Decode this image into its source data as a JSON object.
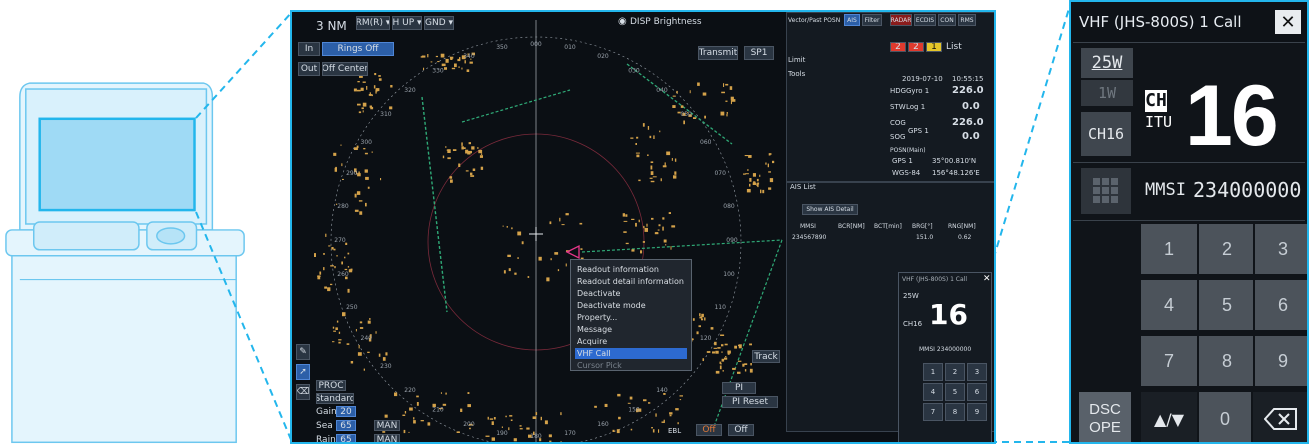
{
  "colors": {
    "accent": "#23b6ec",
    "radar_bg": "#0b0f14",
    "echo": "#d4a24a",
    "menu_select": "#2d6ad0",
    "alert_red": "#e03a2e",
    "alert_yellow": "#e5c629"
  },
  "radar": {
    "range": "3 NM",
    "mode_buttons": [
      "RM(R) ▾",
      "H UP ▾",
      "GND ▾"
    ],
    "rings_in": "In",
    "rings_off": "Rings Off",
    "range_out": "Out",
    "off_center": "Off Center",
    "disp_brightness": "DISP Brightness",
    "transmit": "Transmit",
    "sp": "SP1",
    "bearing_ticks": [
      "350",
      "000",
      "010",
      "020",
      "030",
      "040",
      "050",
      "060",
      "070",
      "080",
      "090",
      "100",
      "110",
      "120",
      "130",
      "140",
      "150",
      "160",
      "170",
      "180",
      "190",
      "200",
      "210",
      "220",
      "230",
      "240",
      "250",
      "260",
      "270",
      "280",
      "290",
      "300",
      "310",
      "320",
      "330",
      "340"
    ],
    "proc": "PROC",
    "standard": "Standard",
    "gain_label": "Gain",
    "gain_value": "20",
    "sea_label": "Sea",
    "sea_value": "65",
    "rain_label": "Rain",
    "rain_value": "65",
    "man": "MAN",
    "track": "Track",
    "pi": "PI",
    "pi_reset": "PI Reset",
    "ebl": "EBL",
    "off": "Off"
  },
  "context_menu": {
    "items": [
      {
        "label": "Readout information",
        "state": "normal"
      },
      {
        "label": "Readout detail information",
        "state": "normal"
      },
      {
        "label": "Deactivate",
        "state": "normal"
      },
      {
        "label": "Deactivate mode",
        "state": "normal"
      },
      {
        "label": "Property...",
        "state": "normal"
      },
      {
        "label": "Message",
        "state": "normal"
      },
      {
        "label": "Acquire",
        "state": "normal"
      },
      {
        "label": "VHF Call",
        "state": "selected"
      },
      {
        "label": "Cursor Pick",
        "state": "dim"
      }
    ]
  },
  "right_panel": {
    "tabs": [
      "Vector/Past POSN",
      "AIS",
      "Filter",
      "RADAR",
      "ECDIS",
      "CON",
      "RMS"
    ],
    "alert_counts": [
      "2",
      "2",
      "1"
    ],
    "list_label": "List",
    "limit": "Limit",
    "tools": "Tools",
    "date": "2019-07-10",
    "time": "10:55:15",
    "hdg_label": "HDG",
    "hdg_source": "Gyro 1",
    "hdg_value": "226.0",
    "stw_label": "STW",
    "stw_source": "Log 1",
    "stw_value": "0.0",
    "cog_label": "COG",
    "cog_value": "226.0",
    "sog_label": "SOG",
    "gps_source": "GPS 1",
    "sog_value": "0.0",
    "posn_label": "POSN(Main)",
    "posn_gps": "GPS 1",
    "lat": "35°00.810'N",
    "datum": "WGS-84",
    "lon": "156°48.126'E",
    "ais_list_title": "AIS List",
    "show_detail": "Show AIS Detail",
    "ais_columns": [
      "MMSI",
      "BCR[NM]",
      "BCT[min]",
      "BRG[°]",
      "RNG[NM]"
    ],
    "ais_rows": [
      [
        "234567890",
        "",
        "",
        "151.0",
        "0.62"
      ]
    ]
  },
  "vhf": {
    "title": "VHF (JHS-800S) 1 Call",
    "power_high": "25W",
    "power_low": "1W",
    "ch_badge_top": "CH",
    "ch_badge_bottom": "ITU",
    "channel": "16",
    "ch16_button": "CH16",
    "mmsi_label": "MMSI",
    "mmsi_value": "234000000",
    "keys": [
      "1",
      "2",
      "3",
      "4",
      "5",
      "6",
      "7",
      "8",
      "9"
    ],
    "dsc_top": "DSC",
    "dsc_bottom": "OPE",
    "updown": "▲/▼",
    "zero": "0",
    "backspace_icon": "backspace-icon"
  },
  "mini_vhf": {
    "title": "VHF (JHS-800S) 1 Call",
    "power": "25W",
    "ch_label": "CH16",
    "channel": "16",
    "mmsi": "MMSI 234000000"
  }
}
